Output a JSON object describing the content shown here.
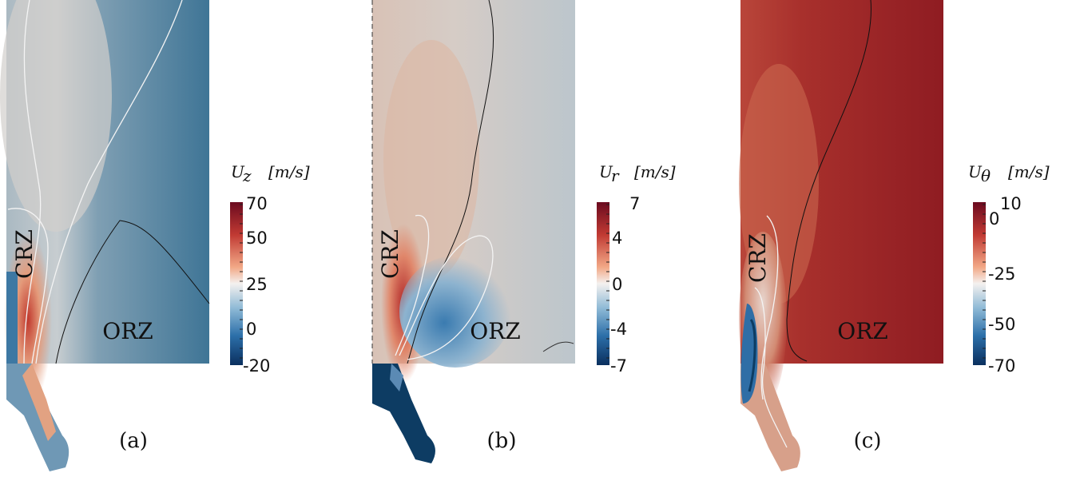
{
  "panels": [
    {
      "caption": "(a)",
      "crz": "CRZ",
      "orz": "ORZ",
      "colorbar": {
        "symbol": "U",
        "sub": "z",
        "unit": "[m/s]",
        "ticks": [
          "70",
          "50",
          "25",
          "0",
          "-20"
        ],
        "min": -20,
        "max": 70
      }
    },
    {
      "caption": "(b)",
      "crz": "CRZ",
      "orz": "ORZ",
      "colorbar": {
        "symbol": "U",
        "sub": "r",
        "unit": "[m/s]",
        "ticks": [
          "7",
          "4",
          "0",
          "-4",
          "-7"
        ],
        "min": -7,
        "max": 7
      }
    },
    {
      "caption": "(c)",
      "crz": "CRZ",
      "orz": "ORZ",
      "colorbar": {
        "symbol": "U",
        "sub": "θ",
        "unit": "[m/s]",
        "ticks": [
          "10",
          "0",
          "-25",
          "-50",
          "-70"
        ],
        "min": -70,
        "max": 10
      }
    }
  ]
}
